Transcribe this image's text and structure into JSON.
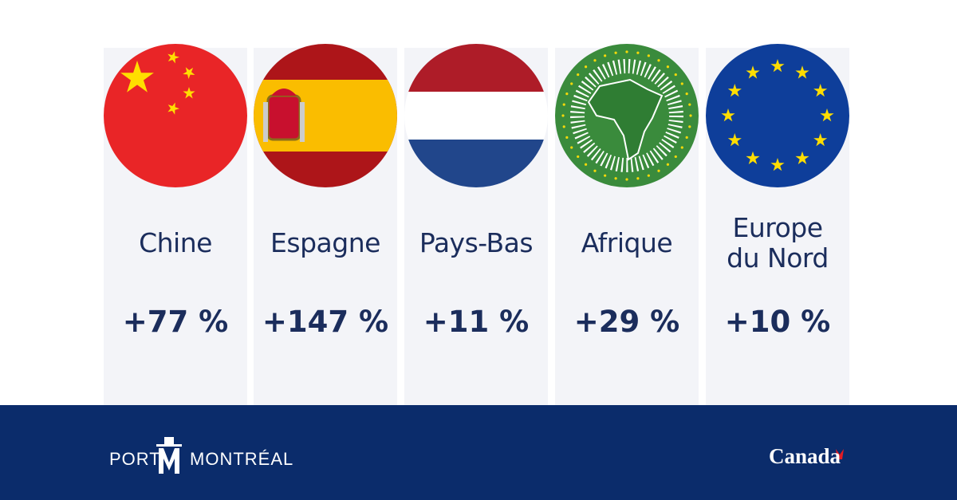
{
  "cards": [
    {
      "name": "Chine",
      "value": "+77 %"
    },
    {
      "name": "Espagne",
      "value": "+147 %"
    },
    {
      "name": "Pays-Bas",
      "value": "+11 %"
    },
    {
      "name": "Afrique",
      "value": "+29 %"
    },
    {
      "name": "Europe du Nord",
      "value": "+10 %"
    }
  ],
  "footer": {
    "logo_left": "PORT",
    "logo_right": "MONTRÉAL",
    "wordmark": "Canada"
  }
}
